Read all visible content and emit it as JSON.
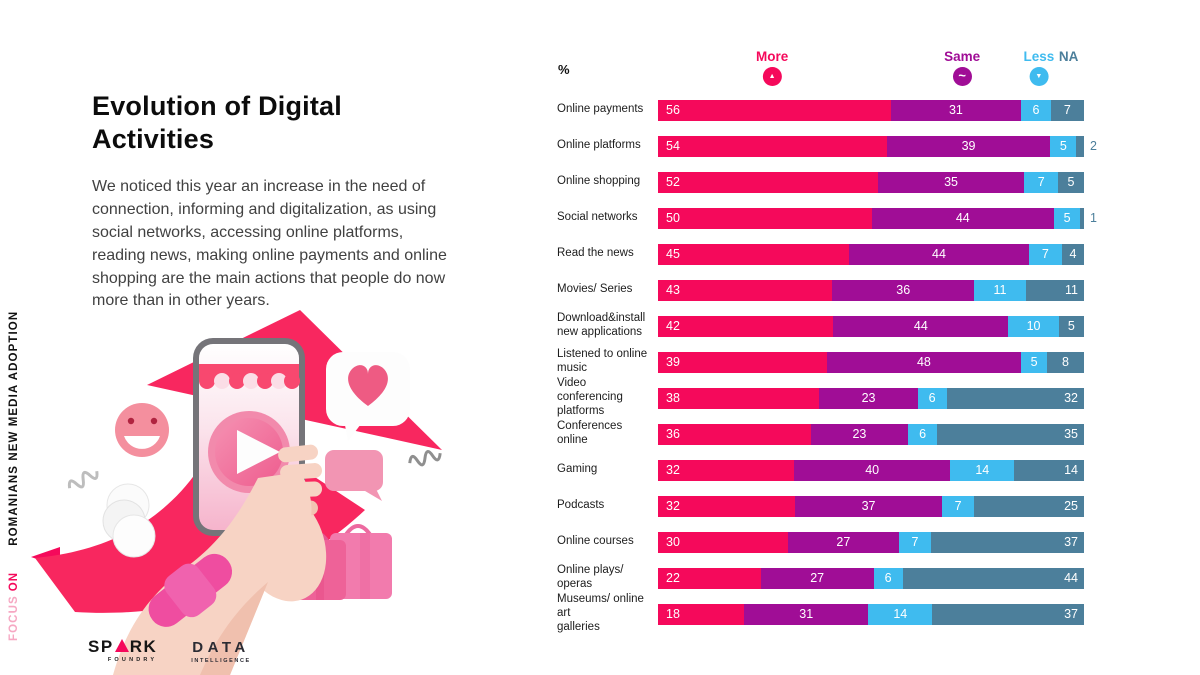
{
  "sidebar_tagline": {
    "focus": "FOCUS",
    "on": "ON",
    "rest": "ROMANIANS NEW MEDIA ADOPTION"
  },
  "header": {
    "title": "Evolution of Digital Activities",
    "paragraph": "We noticed this year an increase in the need of connection, informing and digitalization, as using social networks, accessing online platforms, reading news, making online payments and online shopping are the main actions that people do now more than in other years."
  },
  "footer": {
    "spark_left": "SP",
    "spark_right": "RK",
    "spark_sub": "FOUNDRY",
    "data_name": "DATA",
    "data_sub": "INTELLIGENCE"
  },
  "colors": {
    "more": "#f5095b",
    "same": "#a00d96",
    "less": "#3fbbef",
    "na": "#4c7f9b",
    "title": "#0c0c0c",
    "arrow_pink": "#f8275f"
  },
  "chart_data": {
    "type": "bar",
    "stacked": true,
    "orientation": "horizontal",
    "unit_label": "%",
    "xlim": [
      0,
      100
    ],
    "grid": false,
    "legend_position": "top",
    "legend": [
      {
        "label": "More",
        "color": "#f5095b",
        "icon": "arrow-up",
        "x_pct": 26.8
      },
      {
        "label": "Same",
        "color": "#a00d96",
        "icon": "tilde",
        "x_pct": 71.4
      },
      {
        "label": "Less",
        "color": "#3fbbef",
        "icon": "arrow-down",
        "x_pct": 89.4
      },
      {
        "label": "NA",
        "color": "#4c7f9b",
        "icon": "none",
        "x_pct": 96.4
      }
    ],
    "categories": [
      "Online payments",
      "Online platforms",
      "Online shopping",
      "Social networks",
      "Read the news",
      "Movies/ Series",
      "Download&install\nnew applications",
      "Listened to online\nmusic",
      "Video conferencing\nplatforms",
      "Conferences online",
      "Gaming",
      "Podcasts",
      "Online courses",
      "Online plays/ operas",
      "Museums/ online art\ngalleries"
    ],
    "series": [
      {
        "name": "More",
        "color": "#f5095b",
        "values": [
          56,
          54,
          52,
          50,
          45,
          43,
          42,
          39,
          38,
          36,
          32,
          32,
          30,
          22,
          18
        ]
      },
      {
        "name": "Same",
        "color": "#a00d96",
        "values": [
          31,
          39,
          35,
          44,
          44,
          36,
          44,
          48,
          23,
          23,
          40,
          37,
          27,
          27,
          31
        ]
      },
      {
        "name": "Less",
        "color": "#3fbbef",
        "values": [
          6,
          5,
          7,
          5,
          7,
          11,
          10,
          5,
          6,
          6,
          14,
          7,
          7,
          6,
          14
        ]
      },
      {
        "name": "NA",
        "color": "#4c7f9b",
        "values": [
          7,
          2,
          5,
          1,
          4,
          11,
          5,
          8,
          32,
          35,
          14,
          25,
          37,
          44,
          37
        ]
      }
    ]
  }
}
